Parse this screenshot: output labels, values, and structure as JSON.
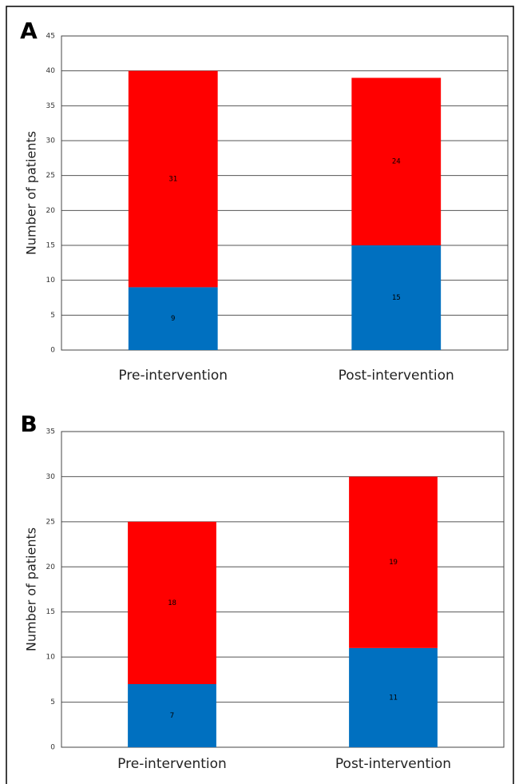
{
  "chart_data": [
    {
      "type": "bar",
      "stacked": true,
      "panel_label": "A",
      "y_label": "Number of patients",
      "categories": [
        "Pre-intervention",
        "Post-intervention"
      ],
      "series": [
        {
          "color": "#0070c0",
          "values": [
            9,
            15
          ]
        },
        {
          "color": "#ff0000",
          "values": [
            31,
            24
          ]
        }
      ],
      "ylim": [
        0,
        45
      ],
      "yticks": [
        0,
        5,
        10,
        15,
        20,
        25,
        30,
        35,
        40,
        45
      ],
      "grid": true
    },
    {
      "type": "bar",
      "stacked": true,
      "panel_label": "B",
      "y_label": "Number of patients",
      "categories": [
        "Pre-intervention",
        "Post-intervention"
      ],
      "series": [
        {
          "color": "#0070c0",
          "values": [
            7,
            11
          ]
        },
        {
          "color": "#ff0000",
          "values": [
            18,
            19
          ]
        }
      ],
      "ylim": [
        0,
        35
      ],
      "yticks": [
        0,
        5,
        10,
        15,
        20,
        25,
        30,
        35
      ],
      "grid": true
    }
  ]
}
